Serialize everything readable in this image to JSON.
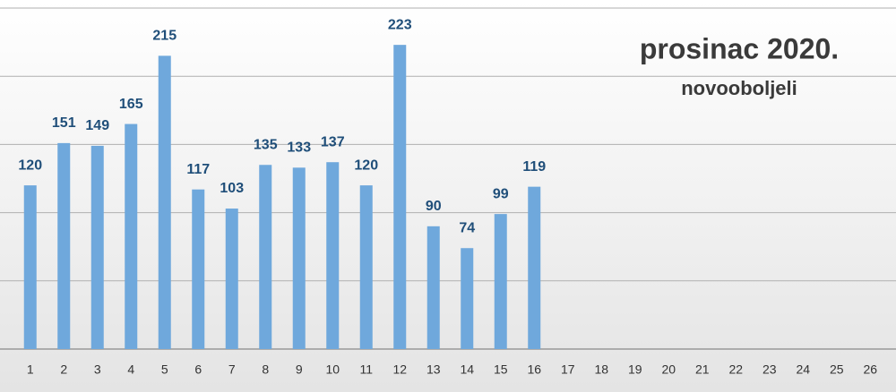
{
  "chart_data": {
    "type": "bar",
    "title": "prosinac 2020.",
    "subtitle": "novooboljeli",
    "categories": [
      "1",
      "2",
      "3",
      "4",
      "5",
      "6",
      "7",
      "8",
      "9",
      "10",
      "11",
      "12",
      "13",
      "14",
      "15",
      "16",
      "17",
      "18",
      "19",
      "20",
      "21",
      "22",
      "23",
      "24",
      "25",
      "26"
    ],
    "values": [
      120,
      151,
      149,
      165,
      215,
      117,
      103,
      135,
      133,
      137,
      120,
      223,
      90,
      74,
      99,
      119,
      null,
      null,
      null,
      null,
      null,
      null,
      null,
      null,
      null,
      null
    ],
    "color": "#6fa8dc",
    "label_color": "#1f4e79",
    "ylim": [
      0,
      250
    ],
    "yticks": [
      50,
      100,
      150,
      200,
      250
    ],
    "grid": true
  }
}
